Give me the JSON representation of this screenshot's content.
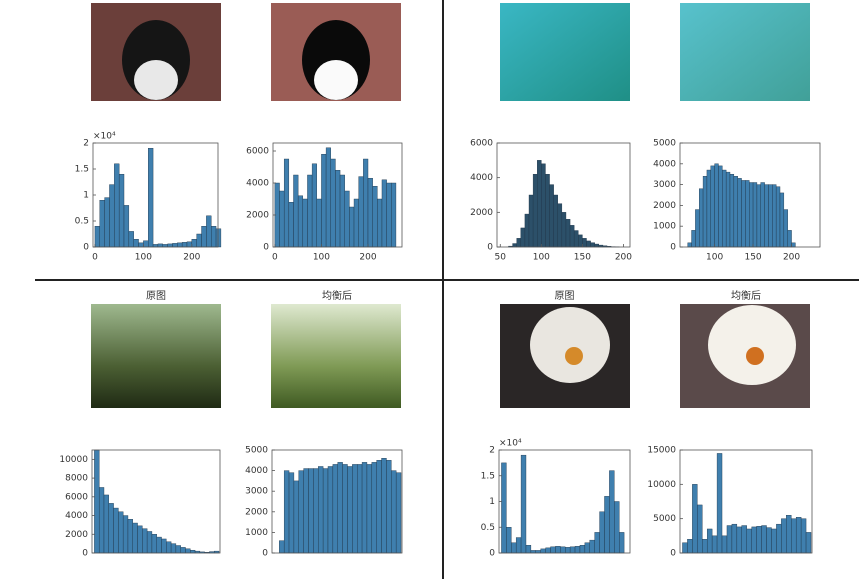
{
  "chart_data": [
    {
      "type": "histogram",
      "color": "#3f7fae",
      "bins": [
        0,
        10,
        20,
        30,
        40,
        50,
        60,
        70,
        80,
        90,
        100,
        110,
        120,
        130,
        140,
        150,
        160,
        170,
        180,
        190,
        200,
        210,
        220,
        230,
        240,
        250,
        260
      ],
      "values": [
        4000,
        9000,
        9500,
        12000,
        16000,
        14000,
        8000,
        3000,
        1500,
        800,
        1200,
        19000,
        500,
        600,
        500,
        600,
        700,
        800,
        900,
        1000,
        1500,
        2500,
        4000,
        6000,
        4000,
        3500
      ],
      "xlim": [
        -4,
        254
      ],
      "xticks": [
        0,
        100,
        200
      ],
      "ylim": [
        0,
        20000
      ],
      "y_scale_label": "×10⁴",
      "yticks": [
        0,
        {
          "value": 5000,
          "label": "0.5"
        },
        {
          "value": 10000,
          "label": "1"
        },
        {
          "value": 15000,
          "label": "1.5"
        },
        {
          "value": 20000,
          "label": "2"
        }
      ]
    },
    {
      "type": "histogram",
      "color": "#3f7fae",
      "bins": [
        0,
        10,
        20,
        30,
        40,
        50,
        60,
        70,
        80,
        90,
        100,
        110,
        120,
        130,
        140,
        150,
        160,
        170,
        180,
        190,
        200,
        210,
        220,
        230,
        240,
        250,
        260
      ],
      "values": [
        4000,
        3500,
        5500,
        2800,
        4500,
        3200,
        3000,
        4500,
        5200,
        3000,
        5800,
        6200,
        5500,
        4800,
        4500,
        3500,
        2500,
        3000,
        4400,
        5500,
        4300,
        3800,
        3000,
        4200,
        4000,
        4000
      ],
      "xlim": [
        -4,
        273
      ],
      "xticks": [
        0,
        100,
        200
      ],
      "ylim": [
        0,
        6500
      ],
      "yticks": [
        0,
        2000,
        4000,
        6000
      ]
    },
    {
      "type": "histogram",
      "color": "#2c5069",
      "bins": [
        60,
        65,
        70,
        75,
        80,
        85,
        90,
        95,
        100,
        105,
        110,
        115,
        120,
        125,
        130,
        135,
        140,
        145,
        150,
        155,
        160,
        165,
        170,
        175,
        180,
        185,
        190,
        195,
        200
      ],
      "values": [
        50,
        200,
        500,
        1100,
        1900,
        3000,
        4200,
        5000,
        4800,
        4200,
        3600,
        3000,
        2500,
        2000,
        1600,
        1250,
        950,
        700,
        500,
        350,
        250,
        170,
        110,
        70,
        40,
        20,
        10,
        0
      ],
      "xlim": [
        46,
        208
      ],
      "xticks": [
        50,
        100,
        150,
        200
      ],
      "ylim": [
        0,
        6000
      ],
      "yticks": [
        0,
        2000,
        4000,
        6000
      ]
    },
    {
      "type": "histogram",
      "color": "#3f7fae",
      "bins": [
        65,
        70,
        75,
        80,
        85,
        90,
        95,
        100,
        105,
        110,
        115,
        120,
        125,
        130,
        135,
        140,
        145,
        150,
        155,
        160,
        165,
        170,
        175,
        180,
        185,
        190,
        195,
        200,
        205
      ],
      "values": [
        200,
        800,
        1800,
        2800,
        3400,
        3700,
        3900,
        4000,
        3900,
        3700,
        3600,
        3500,
        3400,
        3300,
        3200,
        3200,
        3100,
        3100,
        3000,
        3100,
        3000,
        3000,
        3000,
        2900,
        2600,
        1800,
        800,
        200
      ],
      "xlim": [
        55,
        237
      ],
      "xticks": [
        100,
        150,
        200
      ],
      "ylim": [
        0,
        5000
      ],
      "yticks": [
        0,
        1000,
        2000,
        3000,
        4000,
        5000
      ]
    },
    {
      "type": "histogram",
      "color": "#3f7fae",
      "title": "原图",
      "bins": [
        0,
        10,
        20,
        30,
        40,
        50,
        60,
        70,
        80,
        90,
        100,
        110,
        120,
        130,
        140,
        150,
        160,
        170,
        180,
        190,
        200,
        210,
        220,
        230,
        240,
        250,
        260
      ],
      "values": [
        11000,
        7000,
        6200,
        5300,
        4800,
        4400,
        4000,
        3600,
        3200,
        2900,
        2600,
        2300,
        2000,
        1700,
        1500,
        1200,
        1000,
        800,
        600,
        450,
        300,
        200,
        120,
        80,
        150,
        200
      ],
      "xlim": [
        -5,
        262
      ],
      "ylim": [
        0,
        11000
      ],
      "yticks": [
        0,
        2000,
        4000,
        6000,
        8000,
        10000
      ]
    },
    {
      "type": "histogram",
      "color": "#3f7fae",
      "title": "均衡后",
      "bins": [
        0,
        10,
        20,
        30,
        40,
        50,
        60,
        70,
        80,
        90,
        100,
        110,
        120,
        130,
        140,
        150,
        160,
        170,
        180,
        190,
        200,
        210,
        220,
        230,
        240,
        250,
        260
      ],
      "values": [
        0,
        600,
        4000,
        3900,
        3500,
        4000,
        4100,
        4100,
        4100,
        4200,
        4100,
        4200,
        4300,
        4400,
        4300,
        4200,
        4300,
        4300,
        4400,
        4300,
        4400,
        4500,
        4600,
        4500,
        4000,
        3900
      ],
      "xlim": [
        -5,
        262
      ],
      "ylim": [
        0,
        5000
      ],
      "yticks": [
        0,
        1000,
        2000,
        3000,
        4000,
        5000
      ]
    },
    {
      "type": "histogram",
      "color": "#3f7fae",
      "title": "原图",
      "bins": [
        0,
        10,
        20,
        30,
        40,
        50,
        60,
        70,
        80,
        90,
        100,
        110,
        120,
        130,
        140,
        150,
        160,
        170,
        180,
        190,
        200,
        210,
        220,
        230,
        240,
        250,
        260
      ],
      "values": [
        17500,
        5000,
        2000,
        3000,
        19000,
        1500,
        500,
        500,
        800,
        1000,
        1200,
        1300,
        1200,
        1100,
        1200,
        1300,
        1500,
        2000,
        2500,
        4000,
        8000,
        11000,
        16000,
        10000,
        4000,
        0
      ],
      "xlim": [
        -5,
        262
      ],
      "ylim": [
        0,
        20000
      ],
      "y_scale_label": "×10⁴",
      "yticks": [
        0,
        {
          "value": 5000,
          "label": "0.5"
        },
        {
          "value": 10000,
          "label": "1"
        },
        {
          "value": 15000,
          "label": "1.5"
        },
        {
          "value": 20000,
          "label": "2"
        }
      ]
    },
    {
      "type": "histogram",
      "color": "#3f7fae",
      "title": "均衡后",
      "bins": [
        0,
        10,
        20,
        30,
        40,
        50,
        60,
        70,
        80,
        90,
        100,
        110,
        120,
        130,
        140,
        150,
        160,
        170,
        180,
        190,
        200,
        210,
        220,
        230,
        240,
        250,
        260
      ],
      "values": [
        1500,
        2000,
        10000,
        7000,
        2000,
        3500,
        2500,
        14500,
        2500,
        4000,
        4200,
        3800,
        4000,
        3500,
        3800,
        3900,
        4000,
        3700,
        3500,
        4200,
        5000,
        5500,
        5000,
        5200,
        5000,
        3000
      ],
      "xlim": [
        -5,
        262
      ],
      "ylim": [
        0,
        15000
      ],
      "yticks": [
        0,
        5000,
        10000,
        15000
      ]
    }
  ]
}
